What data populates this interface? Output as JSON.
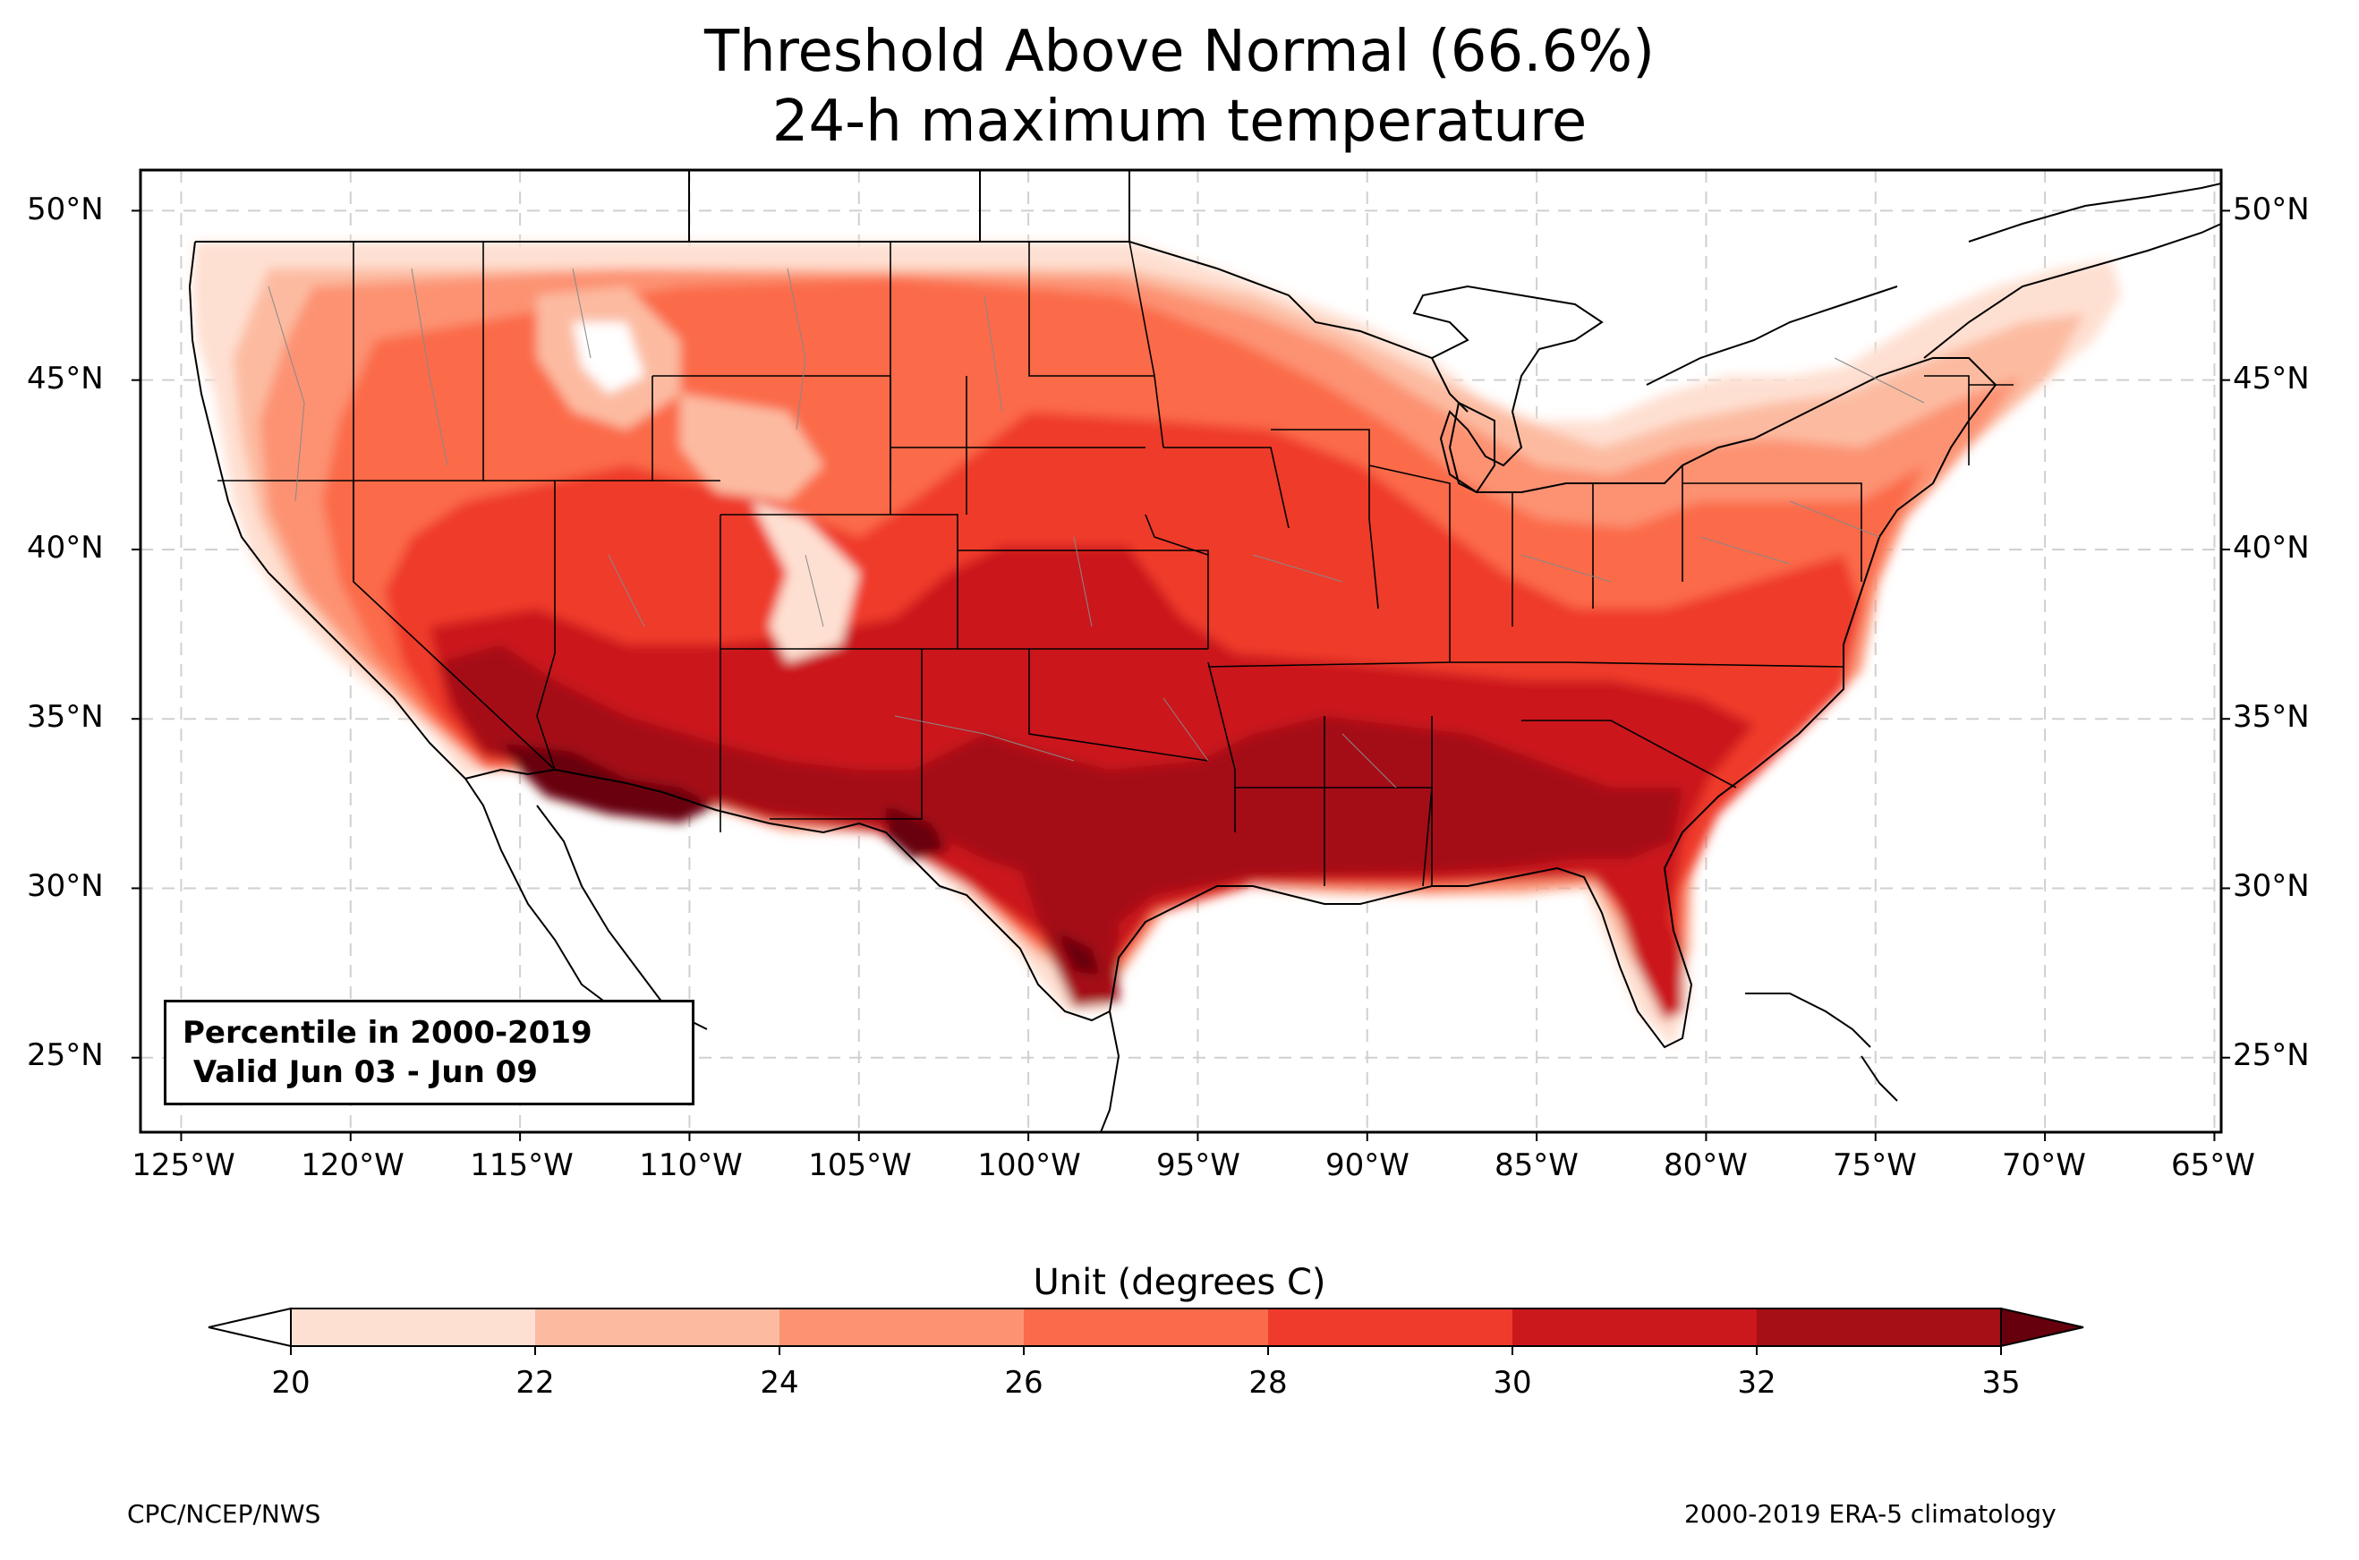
{
  "title": {
    "line1": "Threshold Above Normal (66.6%)",
    "line2": "24-h maximum temperature"
  },
  "map": {
    "lat_labels": [
      "50°N",
      "45°N",
      "40°N",
      "35°N",
      "30°N",
      "25°N"
    ],
    "lon_labels": [
      "125°W",
      "120°W",
      "115°W",
      "110°W",
      "105°W",
      "100°W",
      "95°W",
      "90°W",
      "85°W",
      "80°W",
      "75°W",
      "70°W",
      "65°W"
    ],
    "extent": {
      "lon_min": -126.2,
      "lon_max": -64.8,
      "lat_min": 22.8,
      "lat_max": 51.2
    },
    "gridlines": true
  },
  "info_box": {
    "line1": "Percentile in 2000-2019",
    "line2": " Valid Jun 03 - Jun 09"
  },
  "colorbar": {
    "title": "Unit (degrees C)",
    "ticks": [
      "20",
      "22",
      "24",
      "26",
      "28",
      "30",
      "32",
      "35"
    ],
    "colors": [
      "#fee0d2",
      "#fcbba1",
      "#fc9272",
      "#fb6a4a",
      "#ef3b2c",
      "#cb181d",
      "#a50f15"
    ],
    "under_color": "#ffffff",
    "over_color": "#67000d"
  },
  "footer": {
    "left": "CPC/NCEP/NWS",
    "right": "2000-2019 ERA-5 climatology"
  }
}
